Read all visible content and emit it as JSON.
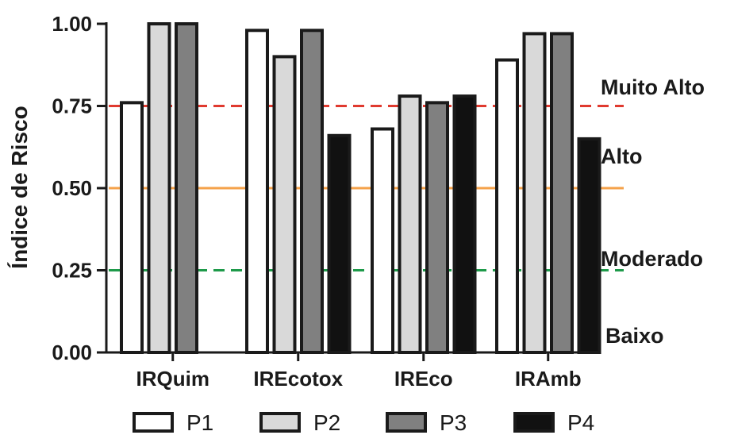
{
  "chart_data": {
    "type": "bar",
    "ylabel": "Índice de Risco",
    "xlabel": "",
    "title": "",
    "ylim": [
      0,
      1
    ],
    "yticks": [
      "0.00",
      "0.25",
      "0.50",
      "0.75",
      "1.00"
    ],
    "categories": [
      "IRQuim",
      "IREcotox",
      "IREco",
      "IRAmb"
    ],
    "series": [
      {
        "name": "P1",
        "color": "#ffffff",
        "values": [
          0.76,
          0.98,
          0.68,
          0.89
        ]
      },
      {
        "name": "P2",
        "color": "#d9d9d9",
        "values": [
          1.0,
          0.9,
          0.78,
          0.97
        ]
      },
      {
        "name": "P3",
        "color": "#808080",
        "values": [
          1.0,
          0.98,
          0.76,
          0.97
        ]
      },
      {
        "name": "P4",
        "color": "#111111",
        "values": [
          null,
          0.66,
          0.78,
          0.65
        ]
      }
    ],
    "reference_lines": [
      {
        "value": 0.75,
        "color": "#e03a2f",
        "style": "dashed"
      },
      {
        "value": 0.5,
        "color": "#f5a24a",
        "style": "solid"
      },
      {
        "value": 0.25,
        "color": "#1e9a4a",
        "style": "dashed"
      }
    ],
    "risk_labels": [
      "Muito Alto",
      "Alto",
      "Moderado",
      "Baixo"
    ],
    "legend_position": "bottom",
    "grid": false
  }
}
